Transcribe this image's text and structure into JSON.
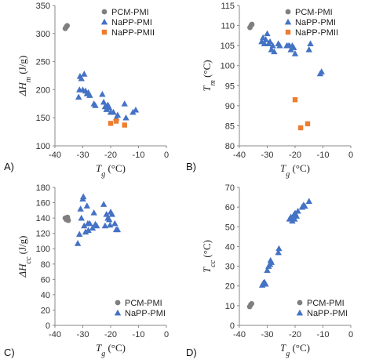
{
  "chart_data": [
    {
      "type": "scatter",
      "panel_label": "A)",
      "ylabel": "ΔHm (J/g)",
      "xlabel": "Tg (°C)",
      "xlim": [
        -40,
        0
      ],
      "ylim": [
        100,
        350
      ],
      "xticks": [
        "-40",
        "-30",
        "-20",
        "-10",
        "0"
      ],
      "yticks": [
        "100",
        "150",
        "200",
        "250",
        "300",
        "350"
      ],
      "legend": {
        "position": "top-right",
        "entries": [
          "PCM-PMI",
          "NaPP-PMI",
          "NaPP-PMII"
        ]
      },
      "series": [
        {
          "name": "PCM-PMI",
          "marker": "circle",
          "color": "#7f7f7f",
          "points": [
            [
              -36.3,
              309
            ],
            [
              -35.9,
              312
            ],
            [
              -35.6,
              314
            ]
          ]
        },
        {
          "name": "NaPP-PMI",
          "marker": "triangle",
          "color": "#4472c4",
          "points": [
            [
              -31.5,
              187
            ],
            [
              -31.2,
              200
            ],
            [
              -31,
              224
            ],
            [
              -30.5,
              220
            ],
            [
              -30,
              200
            ],
            [
              -29.5,
              228
            ],
            [
              -29,
              198
            ],
            [
              -28.5,
              193
            ],
            [
              -28,
              195
            ],
            [
              -27.5,
              190
            ],
            [
              -26,
              175
            ],
            [
              -25.5,
              172
            ],
            [
              -23,
              192
            ],
            [
              -22.5,
              178
            ],
            [
              -22,
              170
            ],
            [
              -21.5,
              165
            ],
            [
              -21,
              173
            ],
            [
              -20.5,
              168
            ],
            [
              -20,
              160
            ],
            [
              -19,
              160
            ],
            [
              -18,
              150
            ],
            [
              -17.5,
              155
            ],
            [
              -15,
              175
            ],
            [
              -14.5,
              150
            ],
            [
              -12,
              160
            ],
            [
              -11,
              164
            ]
          ]
        },
        {
          "name": "NaPP-PMII",
          "marker": "square",
          "color": "#ed7d31",
          "points": [
            [
              -20,
              140
            ],
            [
              -18,
              144
            ],
            [
              -15,
              137
            ]
          ]
        }
      ]
    },
    {
      "type": "scatter",
      "panel_label": "B)",
      "ylabel": "Tm (°C)",
      "xlabel": "Tg (°C)",
      "xlim": [
        -40,
        0
      ],
      "ylim": [
        80,
        115
      ],
      "xticks": [
        "-40",
        "-30",
        "-20",
        "-10",
        "0"
      ],
      "yticks": [
        "80",
        "85",
        "90",
        "95",
        "100",
        "105",
        "110",
        "115"
      ],
      "legend": {
        "position": "top-right",
        "entries": [
          "PCM-PMI",
          "NaPP-PMI",
          "NaPP-PMII"
        ]
      },
      "series": [
        {
          "name": "PCM-PMI",
          "marker": "circle",
          "color": "#7f7f7f",
          "points": [
            [
              -36.2,
              109.5
            ],
            [
              -35.8,
              110
            ],
            [
              -35.5,
              110.3
            ]
          ]
        },
        {
          "name": "NaPP-PMI",
          "marker": "triangle",
          "color": "#4472c4",
          "points": [
            [
              -32,
              106
            ],
            [
              -31.5,
              107
            ],
            [
              -31,
              105.5
            ],
            [
              -30.5,
              106.5
            ],
            [
              -30,
              108
            ],
            [
              -29.5,
              105.5
            ],
            [
              -29,
              106
            ],
            [
              -28.5,
              104
            ],
            [
              -28,
              105
            ],
            [
              -27.5,
              103.5
            ],
            [
              -26,
              105.5
            ],
            [
              -25.5,
              105
            ],
            [
              -23,
              105
            ],
            [
              -22.5,
              105
            ],
            [
              -22,
              105
            ],
            [
              -21.5,
              104
            ],
            [
              -21,
              105
            ],
            [
              -20.5,
              104.5
            ],
            [
              -20,
              103
            ],
            [
              -15,
              104
            ],
            [
              -14.5,
              105.5
            ],
            [
              -11,
              98
            ],
            [
              -10.5,
              98.5
            ]
          ]
        },
        {
          "name": "NaPP-PMII",
          "marker": "square",
          "color": "#ed7d31",
          "points": [
            [
              -20,
              91.5
            ],
            [
              -18,
              84.5
            ],
            [
              -15.5,
              85.5
            ]
          ]
        }
      ]
    },
    {
      "type": "scatter",
      "panel_label": "C)",
      "ylabel": "ΔHcc (J/g)",
      "xlabel": "Tg (°C)",
      "xlim": [
        -40,
        0
      ],
      "ylim": [
        0,
        180
      ],
      "xticks": [
        "-40",
        "-30",
        "-20",
        "-10",
        "0"
      ],
      "yticks": [
        "0",
        "20",
        "40",
        "60",
        "80",
        "100",
        "120",
        "140",
        "160",
        "180"
      ],
      "legend": {
        "position": "bottom-right",
        "entries": [
          "PCM-PMI",
          "NaPP-PMI"
        ]
      },
      "series": [
        {
          "name": "PCM-PMI",
          "marker": "circle",
          "color": "#7f7f7f",
          "points": [
            [
              -36.3,
              140
            ],
            [
              -35.9,
              138
            ],
            [
              -35.5,
              141
            ],
            [
              -35.2,
              137
            ]
          ]
        },
        {
          "name": "NaPP-PMI",
          "marker": "triangle",
          "color": "#4472c4",
          "points": [
            [
              -31.8,
              107
            ],
            [
              -31.2,
              119
            ],
            [
              -30.8,
              152
            ],
            [
              -30.5,
              140
            ],
            [
              -30,
              165
            ],
            [
              -29.8,
              168
            ],
            [
              -29.5,
              130
            ],
            [
              -29,
              122
            ],
            [
              -28.5,
              156
            ],
            [
              -28.2,
              133
            ],
            [
              -28,
              124
            ],
            [
              -27.5,
              133
            ],
            [
              -26.5,
              127
            ],
            [
              -26,
              147
            ],
            [
              -25.5,
              132
            ],
            [
              -25,
              130
            ],
            [
              -22.5,
              158
            ],
            [
              -22,
              130
            ],
            [
              -21.5,
              145
            ],
            [
              -21,
              140
            ],
            [
              -20.5,
              138
            ],
            [
              -20.2,
              131
            ],
            [
              -20,
              148
            ],
            [
              -19.5,
              145
            ],
            [
              -18.5,
              133
            ],
            [
              -18,
              125
            ],
            [
              -17.5,
              125
            ]
          ]
        }
      ]
    },
    {
      "type": "scatter",
      "panel_label": "D)",
      "ylabel": "Tcc (°C)",
      "xlabel": "Tg (°C)",
      "xlim": [
        -40,
        0
      ],
      "ylim": [
        0,
        70
      ],
      "xticks": [
        "-40",
        "-30",
        "-20",
        "-10",
        "0"
      ],
      "yticks": [
        "0",
        "10",
        "20",
        "30",
        "40",
        "50",
        "60",
        "70"
      ],
      "legend": {
        "position": "bottom-right",
        "entries": [
          "PCM-PMI",
          "NaPP-PMI"
        ]
      },
      "series": [
        {
          "name": "PCM-PMI",
          "marker": "circle",
          "color": "#7f7f7f",
          "points": [
            [
              -36.3,
              9.5
            ],
            [
              -35.9,
              10.5
            ],
            [
              -35.6,
              11
            ]
          ]
        },
        {
          "name": "NaPP-PMI",
          "marker": "triangle",
          "color": "#4472c4",
          "points": [
            [
              -31.8,
              20.5
            ],
            [
              -31.4,
              21.5
            ],
            [
              -31,
              22
            ],
            [
              -30.6,
              21
            ],
            [
              -30,
              28
            ],
            [
              -29.5,
              30
            ],
            [
              -29,
              31
            ],
            [
              -28.8,
              33
            ],
            [
              -28.5,
              32
            ],
            [
              -26,
              37
            ],
            [
              -25.8,
              39
            ],
            [
              -22,
              54
            ],
            [
              -21.5,
              55
            ],
            [
              -21,
              53
            ],
            [
              -20.5,
              56
            ],
            [
              -20.2,
              54
            ],
            [
              -20,
              57
            ],
            [
              -19.5,
              55.5
            ],
            [
              -19,
              58
            ],
            [
              -17.5,
              60
            ],
            [
              -17,
              61
            ],
            [
              -16.5,
              60.5
            ],
            [
              -15,
              63
            ]
          ]
        }
      ]
    }
  ]
}
